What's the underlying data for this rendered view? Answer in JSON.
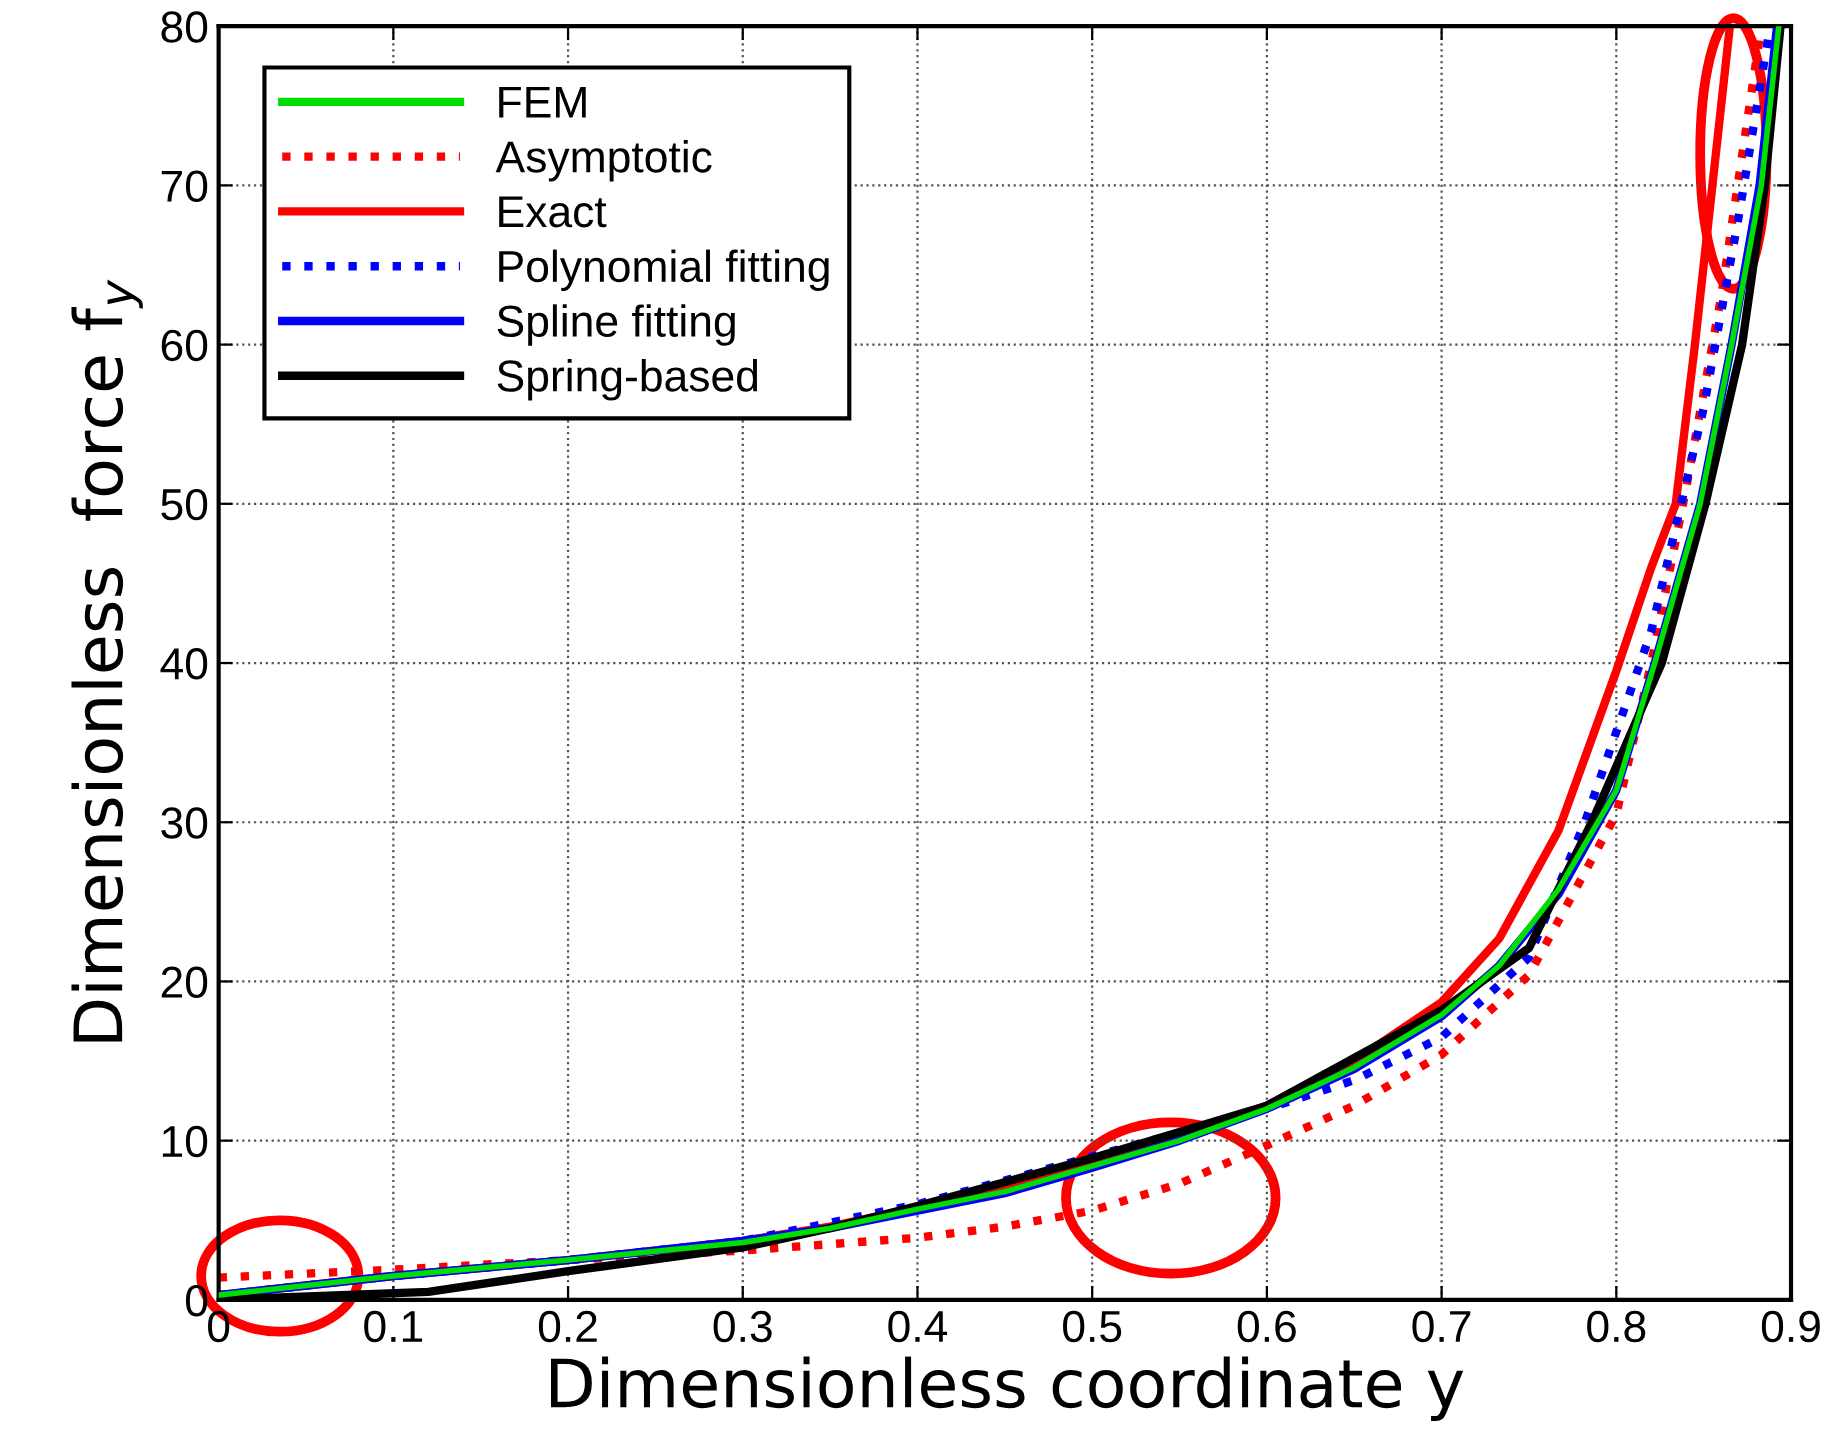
{
  "chart_data": {
    "type": "line",
    "xlabel": "Dimensionless coordinate y",
    "ylabel": "Dimensionless  force f$_{y}$",
    "xlim": [
      0,
      0.9
    ],
    "ylim": [
      0,
      80
    ],
    "xticks": [
      0,
      0.1,
      0.2,
      0.3,
      0.4,
      0.5,
      0.6,
      0.7,
      0.8,
      0.9
    ],
    "yticks": [
      0,
      10,
      20,
      30,
      40,
      50,
      60,
      70,
      80
    ],
    "grid": true,
    "legend": "top left",
    "marker": "none",
    "series": [
      {
        "name": "FEM",
        "color": "#00dd00",
        "line_style": "solid",
        "x": [
          0,
          0.1,
          0.2,
          0.3,
          0.35,
          0.4,
          0.45,
          0.5,
          0.55,
          0.6,
          0.65,
          0.7,
          0.733,
          0.767,
          0.8,
          0.822,
          0.848,
          0.866,
          0.883,
          0.893
        ],
        "values": [
          0.3,
          1.5,
          2.5,
          3.6,
          4.5,
          5.7,
          6.8,
          8.4,
          10,
          12,
          14.6,
          17.9,
          21,
          25.8,
          32,
          40,
          50,
          60,
          70,
          80
        ]
      },
      {
        "name": "Asymptotic",
        "color": "#ff0000",
        "line_style": "dotted",
        "x": [
          0,
          0.1,
          0.2,
          0.3,
          0.4,
          0.45,
          0.5,
          0.55,
          0.6,
          0.65,
          0.7,
          0.75,
          0.8,
          0.82,
          0.84,
          0.86,
          0.883
        ],
        "values": [
          1.4,
          1.9,
          2.5,
          3.1,
          3.9,
          4.6,
          5.6,
          7.3,
          9.7,
          12.2,
          15.4,
          20.4,
          30.5,
          40,
          51,
          63,
          80
        ]
      },
      {
        "name": "Exact",
        "color": "#ff0000",
        "line_style": "solid",
        "x": [
          0,
          0.1,
          0.2,
          0.3,
          0.35,
          0.4,
          0.45,
          0.5,
          0.55,
          0.6,
          0.65,
          0.7,
          0.733,
          0.767,
          0.8,
          0.82,
          0.834,
          0.845,
          0.855,
          0.865
        ],
        "values": [
          0.3,
          1.5,
          2.5,
          3.7,
          4.6,
          5.8,
          7,
          8.7,
          10.2,
          12.2,
          15,
          18.7,
          22.7,
          29.5,
          39.5,
          46,
          50,
          60,
          70,
          80
        ]
      },
      {
        "name": "Polynomial fitting",
        "color": "#0000ff",
        "line_style": "dotted",
        "x": [
          0,
          0.1,
          0.2,
          0.3,
          0.4,
          0.5,
          0.6,
          0.65,
          0.7,
          0.75,
          0.782,
          0.82,
          0.85,
          0.87,
          0.888
        ],
        "values": [
          0.3,
          1.5,
          2.5,
          3.7,
          6,
          9,
          12,
          13.8,
          16.5,
          21.5,
          30,
          42,
          56,
          68,
          80
        ]
      },
      {
        "name": "Spline fitting",
        "color": "#0000ff",
        "line_style": "solid",
        "x": [
          0,
          0.1,
          0.2,
          0.3,
          0.35,
          0.4,
          0.45,
          0.5,
          0.55,
          0.6,
          0.65,
          0.7,
          0.733,
          0.767,
          0.8,
          0.822,
          0.848,
          0.866,
          0.882,
          0.892
        ],
        "values": [
          0.3,
          1.5,
          2.5,
          3.7,
          4.5,
          5.6,
          6.7,
          8.3,
          10,
          12,
          14.5,
          17.8,
          21,
          25.5,
          32,
          40,
          50,
          60,
          70,
          80
        ]
      },
      {
        "name": "Spring-based",
        "color": "#000000",
        "line_style": "solid",
        "x": [
          0,
          0.12,
          0.2,
          0.3,
          0.35,
          0.4,
          0.5,
          0.6,
          0.7,
          0.75,
          0.786,
          0.826,
          0.851,
          0.872,
          0.885,
          0.894
        ],
        "values": [
          0,
          0.5,
          1.8,
          3.3,
          4.5,
          5.9,
          8.9,
          12.2,
          18.2,
          22.1,
          30,
          40,
          50,
          60,
          70,
          80
        ]
      }
    ]
  }
}
